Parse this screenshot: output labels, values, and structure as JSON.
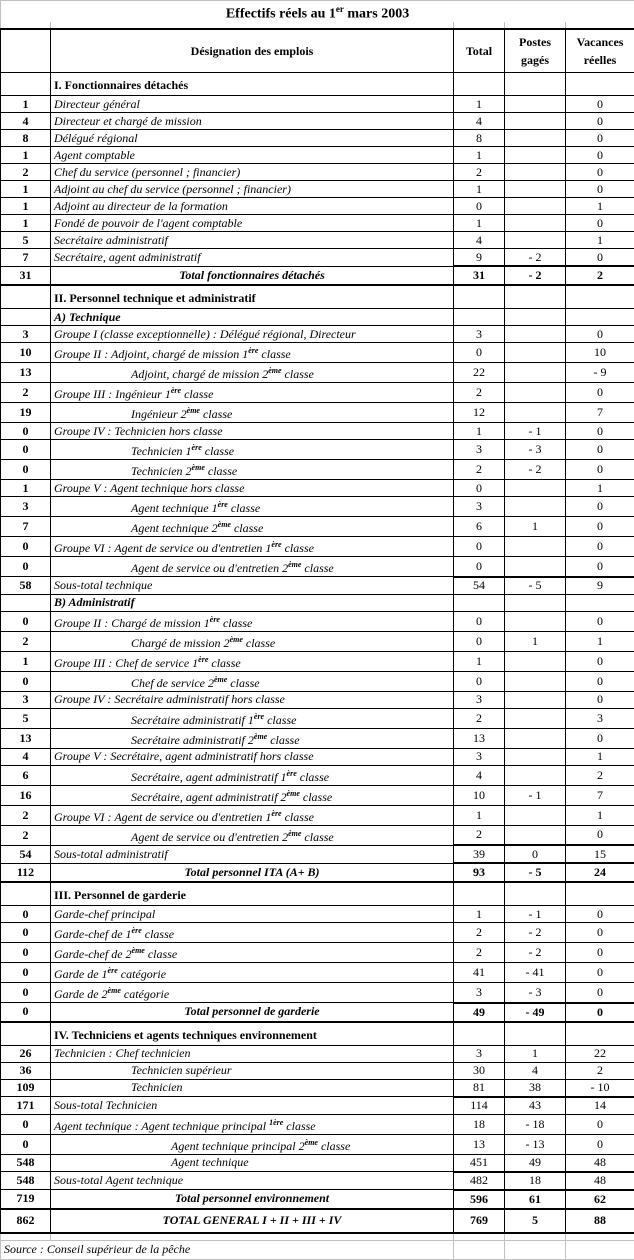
{
  "title": {
    "text": "Effectifs réels au 1",
    "sup": "er",
    "post": " mars 2003"
  },
  "headers": {
    "col1": "",
    "designation": "Désignation des emplois",
    "total": "Total",
    "postes": "Postes gagés",
    "vacances": "Vacances réelles"
  },
  "rows": [
    {
      "kind": "section",
      "count": "",
      "label": "I. Fonctionnaires détachés",
      "total": "",
      "postes": "",
      "vacances": ""
    },
    {
      "kind": "item",
      "count": "1",
      "label": "Directeur général",
      "total": "1",
      "postes": "",
      "vacances": "0"
    },
    {
      "kind": "item",
      "count": "4",
      "label": "Directeur et chargé de mission",
      "total": "4",
      "postes": "",
      "vacances": "0"
    },
    {
      "kind": "item",
      "count": "8",
      "label": "Délégué régional",
      "total": "8",
      "postes": "",
      "vacances": "0"
    },
    {
      "kind": "item",
      "count": "1",
      "label": "Agent comptable",
      "total": "1",
      "postes": "",
      "vacances": "0"
    },
    {
      "kind": "item",
      "count": "2",
      "label": "Chef du service (personnel ; financier)",
      "total": "2",
      "postes": "",
      "vacances": "0"
    },
    {
      "kind": "item",
      "count": "1",
      "label": "Adjoint au chef du service (personnel ; financier)",
      "total": "1",
      "postes": "",
      "vacances": "0"
    },
    {
      "kind": "item",
      "count": "1",
      "label": "Adjoint au directeur de la formation",
      "total": "0",
      "postes": "",
      "vacances": "1"
    },
    {
      "kind": "item",
      "count": "1",
      "label": "Fondé de pouvoir de l'agent comptable",
      "total": "1",
      "postes": "",
      "vacances": "0"
    },
    {
      "kind": "item",
      "count": "5",
      "label": "Secrétaire administratif",
      "total": "4",
      "postes": "",
      "vacances": "1"
    },
    {
      "kind": "item",
      "count": "7",
      "label": "Secrétaire, agent administratif",
      "total": "9",
      "postes": "- 2",
      "vacances": "0"
    },
    {
      "kind": "total",
      "count": "31",
      "label": "Total fonctionnaires détachés",
      "total": "31",
      "postes": "- 2",
      "vacances": "2"
    },
    {
      "kind": "section",
      "count": "",
      "label": "II. Personnel technique et administratif",
      "total": "",
      "postes": "",
      "vacances": ""
    },
    {
      "kind": "subhead",
      "count": "",
      "label": "A) Technique",
      "total": "",
      "postes": "",
      "vacances": ""
    },
    {
      "kind": "item",
      "count": "3",
      "label": "Groupe I (classe exceptionnelle) : Délégué régional, Directeur",
      "total": "3",
      "postes": "",
      "vacances": "0"
    },
    {
      "kind": "item",
      "count": "10",
      "label": "Groupe II : Adjoint, chargé de mission 1",
      "sup": "ère",
      "post": " classe",
      "total": "0",
      "postes": "",
      "vacances": "10"
    },
    {
      "kind": "item-sub",
      "count": "13",
      "label": "Adjoint, chargé de mission 2",
      "sup": "ème",
      "post": " classe",
      "total": "22",
      "postes": "",
      "vacances": "- 9"
    },
    {
      "kind": "item",
      "count": "2",
      "label": "Groupe III : Ingénieur 1",
      "sup": "ère",
      "post": " classe",
      "total": "2",
      "postes": "",
      "vacances": "0"
    },
    {
      "kind": "item-sub",
      "count": "19",
      "label": "Ingénieur 2",
      "sup": "ème",
      "post": " classe",
      "total": "12",
      "postes": "",
      "vacances": "7"
    },
    {
      "kind": "item",
      "count": "0",
      "label": "Groupe IV : Technicien hors classe",
      "total": "1",
      "postes": "- 1",
      "vacances": "0"
    },
    {
      "kind": "item-sub",
      "count": "0",
      "label": "Technicien 1",
      "sup": "ère",
      "post": " classe",
      "total": "3",
      "postes": "- 3",
      "vacances": "0"
    },
    {
      "kind": "item-sub",
      "count": "0",
      "label": "Technicien 2",
      "sup": "ème",
      "post": " classe",
      "total": "2",
      "postes": "- 2",
      "vacances": "0"
    },
    {
      "kind": "item",
      "count": "1",
      "label": "Groupe V : Agent technique hors classe",
      "total": "0",
      "postes": "",
      "vacances": "1"
    },
    {
      "kind": "item-sub",
      "count": "3",
      "label": "Agent technique 1",
      "sup": "ère",
      "post": " classe",
      "total": "3",
      "postes": "",
      "vacances": "0"
    },
    {
      "kind": "item-sub",
      "count": "7",
      "label": "Agent technique 2",
      "sup": "ème",
      "post": " classe",
      "total": "6",
      "postes": "1",
      "vacances": "0"
    },
    {
      "kind": "item",
      "count": "0",
      "label": "Groupe VI : Agent de service ou d'entretien 1",
      "sup": "ère",
      "post": " classe",
      "total": "0",
      "postes": "",
      "vacances": "0"
    },
    {
      "kind": "item-sub",
      "count": "0",
      "label": "Agent de service ou d'entretien 2",
      "sup": "ème",
      "post": " classe",
      "total": "0",
      "postes": "",
      "vacances": "0"
    },
    {
      "kind": "subtotal",
      "count": "58",
      "label": "Sous-total technique",
      "total": "54",
      "postes": "- 5",
      "vacances": "9"
    },
    {
      "kind": "subhead",
      "count": "",
      "label": "B) Administratif",
      "total": "",
      "postes": "",
      "vacances": ""
    },
    {
      "kind": "item",
      "count": "0",
      "label": "Groupe II : Chargé de mission 1",
      "sup": "ère",
      "post": " classe",
      "total": "0",
      "postes": "",
      "vacances": "0"
    },
    {
      "kind": "item-sub",
      "count": "2",
      "label": "Chargé de mission 2",
      "sup": "ème",
      "post": " classe",
      "total": "0",
      "postes": "1",
      "vacances": "1"
    },
    {
      "kind": "item",
      "count": "1",
      "label": "Groupe III : Chef de service 1",
      "sup": "ère",
      "post": " classe",
      "total": "1",
      "postes": "",
      "vacances": "0"
    },
    {
      "kind": "item-sub",
      "count": "0",
      "label": "Chef de service 2",
      "sup": "ème",
      "post": " classe",
      "total": "0",
      "postes": "",
      "vacances": "0"
    },
    {
      "kind": "item",
      "count": "3",
      "label": "Groupe IV : Secrétaire administratif hors classe",
      "total": "3",
      "postes": "",
      "vacances": "0"
    },
    {
      "kind": "item-sub",
      "count": "5",
      "label": "Secrétaire administratif 1",
      "sup": "ère",
      "post": " classe",
      "total": "2",
      "postes": "",
      "vacances": "3"
    },
    {
      "kind": "item-sub",
      "count": "13",
      "label": "Secrétaire administratif 2",
      "sup": "ème",
      "post": " classe",
      "total": "13",
      "postes": "",
      "vacances": "0"
    },
    {
      "kind": "item",
      "count": "4",
      "label": "Groupe V : Secrétaire, agent administratif hors classe",
      "total": "3",
      "postes": "",
      "vacances": "1"
    },
    {
      "kind": "item-sub",
      "count": "6",
      "label": "Secrétaire, agent administratif 1",
      "sup": "ère",
      "post": " classe",
      "total": "4",
      "postes": "",
      "vacances": "2"
    },
    {
      "kind": "item-sub",
      "count": "16",
      "label": "Secrétaire, agent administratif 2",
      "sup": "ème",
      "post": " classe",
      "total": "10",
      "postes": "- 1",
      "vacances": "7"
    },
    {
      "kind": "item",
      "count": "2",
      "label": "Groupe VI : Agent de service ou d'entretien 1",
      "sup": "ère",
      "post": " classe",
      "total": "1",
      "postes": "",
      "vacances": "1"
    },
    {
      "kind": "item-sub",
      "count": "2",
      "label": "Agent de service ou d'entretien 2",
      "sup": "ème",
      "post": " classe",
      "total": "2",
      "postes": "",
      "vacances": "0"
    },
    {
      "kind": "subtotal",
      "count": "54",
      "label": "Sous-total administratif",
      "total": "39",
      "postes": "0",
      "vacances": "15"
    },
    {
      "kind": "total",
      "count": "112",
      "label": "Total personnel ITA (A+ B)",
      "total": "93",
      "postes": "- 5",
      "vacances": "24"
    },
    {
      "kind": "section",
      "count": "",
      "label": "III. Personnel de garderie",
      "total": "",
      "postes": "",
      "vacances": ""
    },
    {
      "kind": "item",
      "count": "0",
      "label": "Garde-chef principal",
      "total": "1",
      "postes": "- 1",
      "vacances": "0"
    },
    {
      "kind": "item",
      "count": "0",
      "label": "Garde-chef de 1",
      "sup": "ère",
      "post": " classe",
      "total": "2",
      "postes": "- 2",
      "vacances": "0"
    },
    {
      "kind": "item",
      "count": "0",
      "label": "Garde-chef de 2",
      "sup": "ème",
      "post": " classe",
      "total": "2",
      "postes": "- 2",
      "vacances": "0"
    },
    {
      "kind": "item",
      "count": "0",
      "label": "Garde de 1",
      "sup": "ère",
      "post": " catégorie",
      "total": "41",
      "postes": "- 41",
      "vacances": "0"
    },
    {
      "kind": "item",
      "count": "0",
      "label": "Garde de 2",
      "sup": "ème",
      "post": " catégorie",
      "total": "3",
      "postes": "- 3",
      "vacances": "0"
    },
    {
      "kind": "total",
      "count": "0",
      "label": "Total personnel de garderie",
      "total": "49",
      "postes": "- 49",
      "vacances": "0"
    },
    {
      "kind": "section",
      "count": "",
      "label": "IV. Techniciens et agents techniques environnement",
      "total": "",
      "postes": "",
      "vacances": ""
    },
    {
      "kind": "item",
      "count": "26",
      "label": "Technicien : Chef technicien",
      "total": "3",
      "postes": "1",
      "vacances": "22"
    },
    {
      "kind": "item-sub",
      "count": "36",
      "label": "Technicien supérieur",
      "total": "30",
      "postes": "4",
      "vacances": "2"
    },
    {
      "kind": "item-sub",
      "count": "109",
      "label": "Technicien",
      "total": "81",
      "postes": "38",
      "vacances": "- 10"
    },
    {
      "kind": "subtotal",
      "count": "171",
      "label": "Sous-total Technicien",
      "total": "114",
      "postes": "43",
      "vacances": "14"
    },
    {
      "kind": "item",
      "count": "0",
      "label": "Agent technique : Agent technique principal ",
      "sup": "1ère",
      "post": " classe",
      "total": "18",
      "postes": "- 18",
      "vacances": "0"
    },
    {
      "kind": "item-sub2",
      "count": "0",
      "label": "Agent technique principal 2",
      "sup": "ème",
      "post": " classe",
      "total": "13",
      "postes": "- 13",
      "vacances": "0"
    },
    {
      "kind": "item-sub2",
      "count": "548",
      "label": "Agent technique",
      "total": "451",
      "postes": "49",
      "vacances": "48"
    },
    {
      "kind": "subtotal",
      "count": "548",
      "label": "Sous-total Agent technique",
      "total": "482",
      "postes": "18",
      "vacances": "48"
    },
    {
      "kind": "total",
      "count": "719",
      "label": "Total personnel environnement",
      "total": "596",
      "postes": "61",
      "vacances": "62"
    },
    {
      "kind": "grand",
      "count": "862",
      "label": "TOTAL GENERAL I + II + III + IV",
      "total": "769",
      "postes": "5",
      "vacances": "88"
    }
  ],
  "source": "Source : Conseil supérieur de la pêche"
}
